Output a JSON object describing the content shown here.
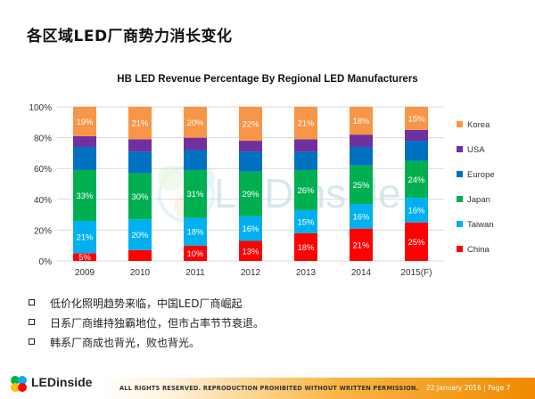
{
  "slide": {
    "title": "各区域LED厂商势力消长变化"
  },
  "chart_data": {
    "type": "bar",
    "stacked": true,
    "title": "HB LED Revenue Percentage By Regional LED Manufacturers",
    "xlabel": "",
    "ylabel": "",
    "categories": [
      "2009",
      "2010",
      "2011",
      "2012",
      "2013",
      "2014",
      "2015(F)"
    ],
    "y_ticks": [
      "0%",
      "20%",
      "40%",
      "60%",
      "80%",
      "100%"
    ],
    "ylim": [
      0,
      100
    ],
    "grid": true,
    "legend_position": "right",
    "series": [
      {
        "name": "China",
        "color": "#ff0000",
        "values": [
          5,
          7,
          10,
          13,
          18,
          21,
          25
        ],
        "labels": [
          "5%",
          "",
          "10%",
          "13%",
          "18%",
          "21%",
          "25%"
        ]
      },
      {
        "name": "Taiwan",
        "color": "#00b0f0",
        "values": [
          21,
          20,
          18,
          16,
          15,
          16,
          16
        ],
        "labels": [
          "21%",
          "20%",
          "18%",
          "16%",
          "15%",
          "16%",
          "16%"
        ]
      },
      {
        "name": "Japan",
        "color": "#00b050",
        "values": [
          33,
          30,
          31,
          29,
          26,
          25,
          24
        ],
        "labels": [
          "33%",
          "30%",
          "31%",
          "29%",
          "26%",
          "25%",
          "24%"
        ]
      },
      {
        "name": "Europe",
        "color": "#0070c0",
        "values": [
          15,
          14,
          13,
          13,
          12,
          12,
          13
        ],
        "labels": [
          "",
          "",
          "",
          "",
          "",
          "",
          ""
        ]
      },
      {
        "name": "USA",
        "color": "#7030a0",
        "values": [
          7,
          8,
          8,
          7,
          8,
          8,
          7
        ],
        "labels": [
          "",
          "",
          "",
          "",
          "",
          "",
          ""
        ]
      },
      {
        "name": "Korea",
        "color": "#f79646",
        "values": [
          19,
          21,
          20,
          22,
          21,
          18,
          15
        ],
        "labels": [
          "19%",
          "21%",
          "20%",
          "22%",
          "21%",
          "18%",
          "15%"
        ]
      }
    ],
    "legend_order": [
      "Korea",
      "USA",
      "Europe",
      "Japan",
      "Taiwan",
      "China"
    ],
    "watermark": "LEDinside"
  },
  "bullets": [
    "低价化照明趋势来临，中国LED厂商崛起",
    "日系厂商维持独霸地位，但市占率节节衰退。",
    "韩系厂商成也背光，败也背光。"
  ],
  "footer": {
    "logo_text": "LEDinside",
    "rights": "ALL RIGHTS RESERVED. REPRODUCTION PROHIBITED WITHOUT WRITTEN PERMISSION.",
    "date_page": "22 January 2016  |  Page 7"
  }
}
